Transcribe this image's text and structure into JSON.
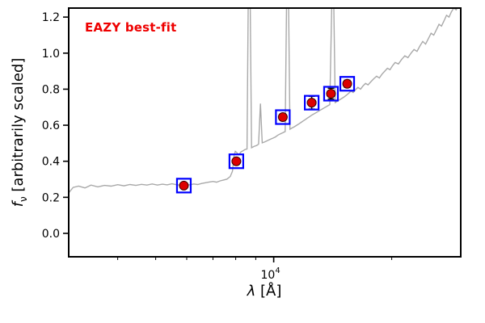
{
  "figure": {
    "annotation": "EAZY best-fit",
    "xlabel": {
      "lambda": "λ",
      "rest": " [Å]"
    },
    "ylabel": {
      "symbol": "f",
      "sub": "ν",
      "rest": " [arbitrarily scaled]"
    },
    "colors": {
      "annotation": "#ee0000",
      "frame": "#000000",
      "spectrum": "#a9a9a9",
      "marker_square": "#0000ff",
      "marker_circle": "#dd0000",
      "errorbar": "#000000",
      "background": "#ffffff"
    }
  },
  "chart_data": {
    "type": "line+scatter",
    "title": "",
    "xlabel": "λ [Å]",
    "ylabel": "f_ν [arbitrarily scaled]",
    "x_scale": "log",
    "xlim": [
      3000,
      30000
    ],
    "ylim": [
      -0.13,
      1.25
    ],
    "grid": false,
    "legend": false,
    "y_ticks": [
      {
        "value": 0.0,
        "label": "0.0"
      },
      {
        "value": 0.2,
        "label": "0.2"
      },
      {
        "value": 0.4,
        "label": "0.4"
      },
      {
        "value": 0.6,
        "label": "0.6"
      },
      {
        "value": 0.8,
        "label": "0.8"
      },
      {
        "value": 1.0,
        "label": "1.0"
      },
      {
        "value": 1.2,
        "label": "1.2"
      }
    ],
    "x_major_ticks": [
      {
        "value": 10000,
        "base": "10",
        "exp": "4"
      }
    ],
    "x_minor_ticks": [
      4000,
      5000,
      6000,
      7000,
      8000,
      9000,
      20000
    ],
    "series": [
      {
        "name": "EAZY best-fit model spectrum",
        "type": "line",
        "color": "#a9a9a9",
        "width": 1.4,
        "points": [
          [
            3000,
            0.225
          ],
          [
            3080,
            0.255
          ],
          [
            3180,
            0.262
          ],
          [
            3300,
            0.252
          ],
          [
            3420,
            0.268
          ],
          [
            3560,
            0.258
          ],
          [
            3700,
            0.266
          ],
          [
            3850,
            0.262
          ],
          [
            4000,
            0.27
          ],
          [
            4150,
            0.264
          ],
          [
            4300,
            0.271
          ],
          [
            4450,
            0.266
          ],
          [
            4600,
            0.272
          ],
          [
            4750,
            0.268
          ],
          [
            4900,
            0.274
          ],
          [
            5050,
            0.268
          ],
          [
            5200,
            0.273
          ],
          [
            5350,
            0.269
          ],
          [
            5500,
            0.275
          ],
          [
            5650,
            0.27
          ],
          [
            5800,
            0.267
          ],
          [
            5950,
            0.272
          ],
          [
            6100,
            0.269
          ],
          [
            6250,
            0.274
          ],
          [
            6400,
            0.271
          ],
          [
            6550,
            0.277
          ],
          [
            6700,
            0.281
          ],
          [
            6850,
            0.285
          ],
          [
            7000,
            0.288
          ],
          [
            7150,
            0.284
          ],
          [
            7300,
            0.291
          ],
          [
            7450,
            0.296
          ],
          [
            7600,
            0.301
          ],
          [
            7750,
            0.316
          ],
          [
            7850,
            0.345
          ],
          [
            7920,
            0.43
          ],
          [
            7980,
            0.455
          ],
          [
            8050,
            0.448
          ],
          [
            8150,
            0.436
          ],
          [
            8250,
            0.452
          ],
          [
            8350,
            0.458
          ],
          [
            8450,
            0.465
          ],
          [
            8550,
            0.468
          ],
          [
            8620,
            1.4
          ],
          [
            8700,
            1.4
          ],
          [
            8780,
            0.475
          ],
          [
            8900,
            0.482
          ],
          [
            9050,
            0.488
          ],
          [
            9150,
            0.495
          ],
          [
            9250,
            0.72
          ],
          [
            9350,
            0.502
          ],
          [
            9500,
            0.508
          ],
          [
            9650,
            0.515
          ],
          [
            9800,
            0.522
          ],
          [
            9950,
            0.528
          ],
          [
            10100,
            0.535
          ],
          [
            10250,
            0.545
          ],
          [
            10400,
            0.552
          ],
          [
            10550,
            0.558
          ],
          [
            10700,
            0.565
          ],
          [
            10800,
            1.4
          ],
          [
            10900,
            1.4
          ],
          [
            11000,
            0.578
          ],
          [
            11150,
            0.585
          ],
          [
            11300,
            0.592
          ],
          [
            11450,
            0.6
          ],
          [
            11600,
            0.608
          ],
          [
            11750,
            0.616
          ],
          [
            11900,
            0.624
          ],
          [
            12050,
            0.632
          ],
          [
            12200,
            0.64
          ],
          [
            12350,
            0.648
          ],
          [
            12500,
            0.656
          ],
          [
            12700,
            0.664
          ],
          [
            12900,
            0.673
          ],
          [
            13100,
            0.682
          ],
          [
            13300,
            0.69
          ],
          [
            13500,
            0.698
          ],
          [
            13700,
            0.706
          ],
          [
            13900,
            0.714
          ],
          [
            14100,
            1.4
          ],
          [
            14200,
            1.4
          ],
          [
            14350,
            0.726
          ],
          [
            14550,
            0.734
          ],
          [
            14750,
            0.742
          ],
          [
            14950,
            0.75
          ],
          [
            15150,
            0.758
          ],
          [
            15350,
            0.768
          ],
          [
            15550,
            0.778
          ],
          [
            15750,
            0.79
          ],
          [
            15950,
            0.782
          ],
          [
            16150,
            0.796
          ],
          [
            16400,
            0.81
          ],
          [
            16650,
            0.8
          ],
          [
            16900,
            0.818
          ],
          [
            17150,
            0.832
          ],
          [
            17400,
            0.824
          ],
          [
            17700,
            0.842
          ],
          [
            18000,
            0.858
          ],
          [
            18300,
            0.872
          ],
          [
            18600,
            0.862
          ],
          [
            18900,
            0.884
          ],
          [
            19200,
            0.9
          ],
          [
            19500,
            0.916
          ],
          [
            19800,
            0.908
          ],
          [
            20100,
            0.93
          ],
          [
            20400,
            0.948
          ],
          [
            20800,
            0.94
          ],
          [
            21200,
            0.965
          ],
          [
            21600,
            0.985
          ],
          [
            22000,
            0.975
          ],
          [
            22400,
            1.0
          ],
          [
            22800,
            1.02
          ],
          [
            23200,
            1.01
          ],
          [
            23600,
            1.04
          ],
          [
            24000,
            1.065
          ],
          [
            24400,
            1.05
          ],
          [
            24800,
            1.08
          ],
          [
            25200,
            1.11
          ],
          [
            25600,
            1.1
          ],
          [
            26000,
            1.13
          ],
          [
            26400,
            1.16
          ],
          [
            26800,
            1.15
          ],
          [
            27200,
            1.18
          ],
          [
            27600,
            1.21
          ],
          [
            28000,
            1.2
          ],
          [
            28400,
            1.23
          ],
          [
            28800,
            1.25
          ],
          [
            29200,
            1.24
          ],
          [
            29600,
            1.26
          ],
          [
            30000,
            1.27
          ]
        ]
      },
      {
        "name": "observed photometry",
        "type": "scatter",
        "marker": "open-square + filled-circle",
        "square_color": "#0000ff",
        "circle_color": "#dd0000",
        "circle_edge": "#3a0000",
        "errorbar_color": "#000000",
        "points": [
          {
            "x": 5900,
            "y": 0.265,
            "yerr": 0.012
          },
          {
            "x": 8030,
            "y": 0.4,
            "yerr": 0.012
          },
          {
            "x": 10550,
            "y": 0.645,
            "yerr": 0.018
          },
          {
            "x": 12500,
            "y": 0.725,
            "yerr": 0.035
          },
          {
            "x": 14000,
            "y": 0.775,
            "yerr": 0.03
          },
          {
            "x": 15400,
            "y": 0.83,
            "yerr": 0.02
          }
        ]
      }
    ]
  }
}
